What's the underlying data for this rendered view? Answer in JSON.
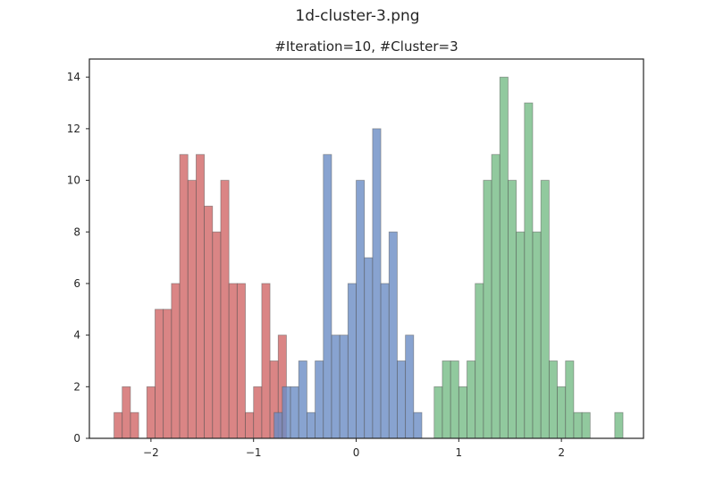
{
  "figure": {
    "suptitle": "1d-cluster-3.png"
  },
  "chart_data": {
    "type": "histogram",
    "title": "#Iteration=10, #Cluster=3",
    "xlabel": "",
    "ylabel": "",
    "xlim": [
      -2.6,
      2.8
    ],
    "ylim": [
      0,
      14.7
    ],
    "xticks": [
      -2,
      -1,
      0,
      1,
      2
    ],
    "xtick_labels": [
      "−2",
      "−1",
      "0",
      "1",
      "2"
    ],
    "yticks": [
      0,
      2,
      4,
      6,
      8,
      10,
      12,
      14
    ],
    "ytick_labels": [
      "0",
      "2",
      "4",
      "6",
      "8",
      "10",
      "12",
      "14"
    ],
    "grid": false,
    "series": [
      {
        "color": "#cd5c5c",
        "alpha": 0.75,
        "bins": [
          [
            -2.36,
            -2.28,
            1
          ],
          [
            -2.28,
            -2.2,
            2
          ],
          [
            -2.2,
            -2.12,
            1
          ],
          [
            -2.12,
            -2.04,
            0
          ],
          [
            -2.04,
            -1.96,
            2
          ],
          [
            -1.96,
            -1.88,
            5
          ],
          [
            -1.88,
            -1.8,
            5
          ],
          [
            -1.8,
            -1.72,
            6
          ],
          [
            -1.72,
            -1.64,
            11
          ],
          [
            -1.64,
            -1.56,
            10
          ],
          [
            -1.56,
            -1.48,
            11
          ],
          [
            -1.48,
            -1.4,
            9
          ],
          [
            -1.4,
            -1.32,
            8
          ],
          [
            -1.32,
            -1.24,
            10
          ],
          [
            -1.24,
            -1.16,
            6
          ],
          [
            -1.16,
            -1.08,
            6
          ],
          [
            -1.08,
            -1.0,
            1
          ],
          [
            -1.0,
            -0.92,
            2
          ],
          [
            -0.92,
            -0.84,
            6
          ],
          [
            -0.84,
            -0.76,
            3
          ],
          [
            -0.76,
            -0.68,
            4
          ]
        ]
      },
      {
        "color": "#6a8cc4",
        "alpha": 0.8,
        "bins": [
          [
            -0.8,
            -0.72,
            1
          ],
          [
            -0.72,
            -0.64,
            2
          ],
          [
            -0.64,
            -0.56,
            2
          ],
          [
            -0.56,
            -0.48,
            3
          ],
          [
            -0.48,
            -0.4,
            1
          ],
          [
            -0.4,
            -0.32,
            3
          ],
          [
            -0.32,
            -0.24,
            11
          ],
          [
            -0.24,
            -0.16,
            4
          ],
          [
            -0.16,
            -0.08,
            4
          ],
          [
            -0.08,
            0.0,
            6
          ],
          [
            0.0,
            0.08,
            10
          ],
          [
            0.08,
            0.16,
            7
          ],
          [
            0.16,
            0.24,
            12
          ],
          [
            0.24,
            0.32,
            6
          ],
          [
            0.32,
            0.4,
            8
          ],
          [
            0.4,
            0.48,
            3
          ],
          [
            0.48,
            0.56,
            4
          ],
          [
            0.56,
            0.64,
            1
          ]
        ]
      },
      {
        "color": "#6cb77e",
        "alpha": 0.75,
        "bins": [
          [
            0.76,
            0.84,
            2
          ],
          [
            0.84,
            0.92,
            3
          ],
          [
            0.92,
            1.0,
            3
          ],
          [
            1.0,
            1.08,
            2
          ],
          [
            1.08,
            1.16,
            3
          ],
          [
            1.16,
            1.24,
            6
          ],
          [
            1.24,
            1.32,
            10
          ],
          [
            1.32,
            1.4,
            11
          ],
          [
            1.4,
            1.48,
            14
          ],
          [
            1.48,
            1.56,
            10
          ],
          [
            1.56,
            1.64,
            8
          ],
          [
            1.64,
            1.72,
            13
          ],
          [
            1.72,
            1.8,
            8
          ],
          [
            1.8,
            1.88,
            10
          ],
          [
            1.88,
            1.96,
            3
          ],
          [
            1.96,
            2.04,
            2
          ],
          [
            2.04,
            2.12,
            3
          ],
          [
            2.12,
            2.2,
            1
          ],
          [
            2.2,
            2.28,
            1
          ],
          [
            2.28,
            2.36,
            0
          ],
          [
            2.36,
            2.44,
            0
          ],
          [
            2.44,
            2.52,
            0
          ],
          [
            2.52,
            2.6,
            1
          ]
        ]
      }
    ]
  }
}
